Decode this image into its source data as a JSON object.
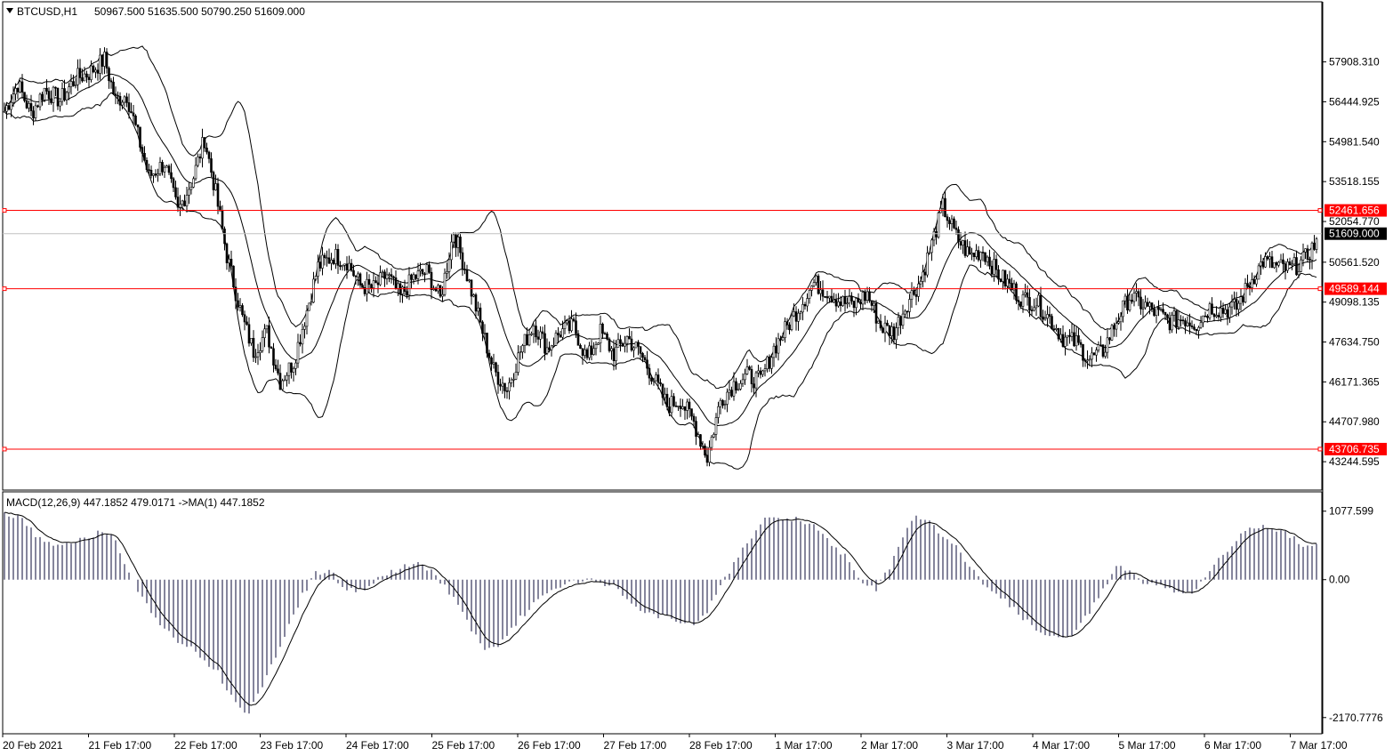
{
  "chart_data": {
    "type": "candlestick",
    "symbol_label": "BTCUSD,H1",
    "ohlc_label": "50967.500 51635.500 50790.250 51609.000",
    "price_axis": {
      "ylim": [
        42400,
        59200
      ],
      "ticks": [
        "57908.310",
        "56444.925",
        "54981.540",
        "53518.155",
        "52054.770",
        "50561.520",
        "49098.135",
        "47634.750",
        "46171.365",
        "44707.980",
        "43244.595"
      ]
    },
    "time_axis": {
      "labels": [
        "20 Feb 2021",
        "21 Feb 17:00",
        "22 Feb 17:00",
        "23 Feb 17:00",
        "24 Feb 17:00",
        "25 Feb 17:00",
        "26 Feb 17:00",
        "27 Feb 17:00",
        "28 Feb 17:00",
        "1 Mar 17:00",
        "2 Mar 17:00",
        "3 Mar 17:00",
        "4 Mar 17:00",
        "5 Mar 17:00",
        "6 Mar 17:00",
        "7 Mar 17:00"
      ]
    },
    "current_price": {
      "value": 51609.0,
      "label": "51609.000"
    },
    "horizontal_lines": [
      {
        "value": 52461.656,
        "label": "52461.656",
        "color": "#ff0000"
      },
      {
        "value": 49589.144,
        "label": "49589.144",
        "color": "#ff0000"
      },
      {
        "value": 43706.735,
        "label": "43706.735",
        "color": "#ff0000"
      }
    ],
    "close_anchors": [
      [
        0,
        56100
      ],
      [
        6,
        57100
      ],
      [
        12,
        56000
      ],
      [
        18,
        56900
      ],
      [
        25,
        56500
      ],
      [
        32,
        57300
      ],
      [
        38,
        57500
      ],
      [
        45,
        58000
      ],
      [
        50,
        56500
      ],
      [
        55,
        56700
      ],
      [
        60,
        55200
      ],
      [
        65,
        53700
      ],
      [
        72,
        54200
      ],
      [
        78,
        52400
      ],
      [
        85,
        53700
      ],
      [
        90,
        55100
      ],
      [
        95,
        53100
      ],
      [
        100,
        50800
      ],
      [
        107,
        48500
      ],
      [
        112,
        47300
      ],
      [
        118,
        48000
      ],
      [
        124,
        46200
      ],
      [
        130,
        46900
      ],
      [
        136,
        48800
      ],
      [
        141,
        50400
      ],
      [
        148,
        50800
      ],
      [
        154,
        50600
      ],
      [
        160,
        49700
      ],
      [
        166,
        49600
      ],
      [
        172,
        50100
      ],
      [
        178,
        49300
      ],
      [
        184,
        50000
      ],
      [
        190,
        50200
      ],
      [
        196,
        49200
      ],
      [
        202,
        51700
      ],
      [
        208,
        50100
      ],
      [
        214,
        48300
      ],
      [
        220,
        46600
      ],
      [
        226,
        45900
      ],
      [
        232,
        47300
      ],
      [
        238,
        48300
      ],
      [
        244,
        47400
      ],
      [
        250,
        48000
      ],
      [
        256,
        48200
      ],
      [
        262,
        47000
      ],
      [
        268,
        48000
      ],
      [
        274,
        47200
      ],
      [
        280,
        47800
      ],
      [
        286,
        47200
      ],
      [
        292,
        46300
      ],
      [
        298,
        45300
      ],
      [
        304,
        45500
      ],
      [
        310,
        44700
      ],
      [
        316,
        43400
      ],
      [
        322,
        45500
      ],
      [
        328,
        46100
      ],
      [
        334,
        46400
      ],
      [
        340,
        46200
      ],
      [
        346,
        47400
      ],
      [
        352,
        48200
      ],
      [
        358,
        49000
      ],
      [
        364,
        49800
      ],
      [
        370,
        49500
      ],
      [
        376,
        49100
      ],
      [
        382,
        49000
      ],
      [
        388,
        49400
      ],
      [
        394,
        48200
      ],
      [
        400,
        48000
      ],
      [
        406,
        49100
      ],
      [
        412,
        49900
      ],
      [
        418,
        51500
      ],
      [
        422,
        52600
      ],
      [
        428,
        51500
      ],
      [
        434,
        50800
      ],
      [
        440,
        51000
      ],
      [
        446,
        50200
      ],
      [
        452,
        49700
      ],
      [
        458,
        49200
      ],
      [
        464,
        49100
      ],
      [
        470,
        48500
      ],
      [
        476,
        47800
      ],
      [
        482,
        47600
      ],
      [
        488,
        47000
      ],
      [
        494,
        47300
      ],
      [
        500,
        48400
      ],
      [
        506,
        49300
      ],
      [
        512,
        49000
      ],
      [
        518,
        48700
      ],
      [
        524,
        48400
      ],
      [
        530,
        48500
      ],
      [
        536,
        48300
      ],
      [
        542,
        48900
      ],
      [
        548,
        48800
      ],
      [
        554,
        48900
      ],
      [
        560,
        49800
      ],
      [
        566,
        50600
      ],
      [
        572,
        50400
      ],
      [
        578,
        50300
      ],
      [
        584,
        50600
      ],
      [
        590,
        51300
      ]
    ],
    "macd_label": "MACD(12,26,9) 447.1852 479.0171  ->MA(1) 447.1852",
    "macd_axis": {
      "ylim": [
        -2300,
        1200
      ],
      "ticks": [
        "1077.599",
        "0.00",
        "-2170.7776"
      ]
    },
    "macd_anchors": [
      [
        0,
        1050
      ],
      [
        8,
        980
      ],
      [
        14,
        700
      ],
      [
        20,
        580
      ],
      [
        28,
        560
      ],
      [
        36,
        640
      ],
      [
        44,
        780
      ],
      [
        50,
        620
      ],
      [
        56,
        100
      ],
      [
        62,
        -300
      ],
      [
        70,
        -700
      ],
      [
        78,
        -1000
      ],
      [
        84,
        -1050
      ],
      [
        90,
        -1300
      ],
      [
        96,
        -1450
      ],
      [
        100,
        -1750
      ],
      [
        106,
        -2000
      ],
      [
        110,
        -2100
      ],
      [
        116,
        -1700
      ],
      [
        122,
        -1200
      ],
      [
        128,
        -700
      ],
      [
        134,
        -250
      ],
      [
        140,
        100
      ],
      [
        146,
        150
      ],
      [
        152,
        -100
      ],
      [
        158,
        -200
      ],
      [
        164,
        -100
      ],
      [
        172,
        100
      ],
      [
        180,
        200
      ],
      [
        186,
        250
      ],
      [
        192,
        150
      ],
      [
        198,
        -100
      ],
      [
        204,
        -400
      ],
      [
        210,
        -800
      ],
      [
        216,
        -1100
      ],
      [
        220,
        -1100
      ],
      [
        226,
        -900
      ],
      [
        232,
        -600
      ],
      [
        238,
        -400
      ],
      [
        244,
        -200
      ],
      [
        250,
        -100
      ],
      [
        256,
        -50
      ],
      [
        262,
        -20
      ],
      [
        268,
        -40
      ],
      [
        274,
        -100
      ],
      [
        280,
        -300
      ],
      [
        286,
        -500
      ],
      [
        292,
        -550
      ],
      [
        298,
        -600
      ],
      [
        304,
        -700
      ],
      [
        310,
        -700
      ],
      [
        316,
        -500
      ],
      [
        322,
        -100
      ],
      [
        330,
        350
      ],
      [
        338,
        800
      ],
      [
        344,
        1000
      ],
      [
        350,
        950
      ],
      [
        356,
        950
      ],
      [
        362,
        900
      ],
      [
        368,
        700
      ],
      [
        374,
        500
      ],
      [
        380,
        300
      ],
      [
        386,
        -100
      ],
      [
        392,
        -150
      ],
      [
        398,
        200
      ],
      [
        404,
        700
      ],
      [
        410,
        1000
      ],
      [
        416,
        900
      ],
      [
        422,
        700
      ],
      [
        428,
        500
      ],
      [
        434,
        200
      ],
      [
        440,
        -50
      ],
      [
        446,
        -200
      ],
      [
        452,
        -400
      ],
      [
        458,
        -600
      ],
      [
        464,
        -800
      ],
      [
        470,
        -900
      ],
      [
        476,
        -950
      ],
      [
        482,
        -800
      ],
      [
        488,
        -500
      ],
      [
        494,
        -150
      ],
      [
        500,
        200
      ],
      [
        506,
        150
      ],
      [
        512,
        -50
      ],
      [
        518,
        -100
      ],
      [
        524,
        -150
      ],
      [
        530,
        -250
      ],
      [
        536,
        -150
      ],
      [
        542,
        100
      ],
      [
        548,
        400
      ],
      [
        556,
        700
      ],
      [
        564,
        850
      ],
      [
        572,
        800
      ],
      [
        578,
        700
      ],
      [
        584,
        550
      ]
    ]
  }
}
